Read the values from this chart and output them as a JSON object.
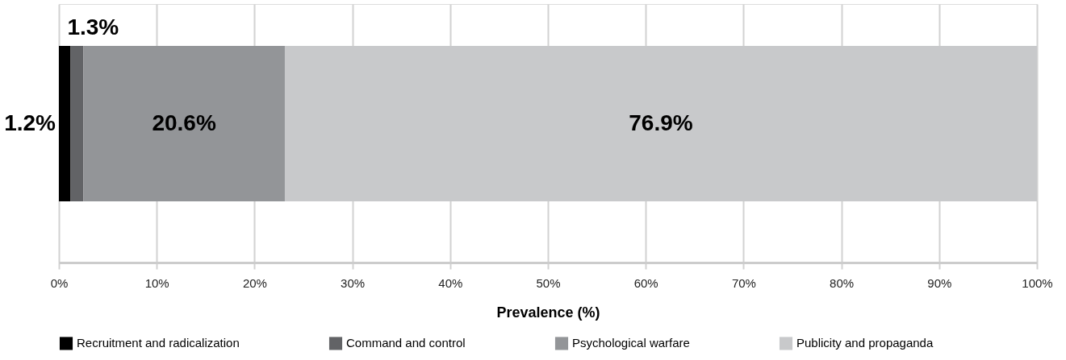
{
  "chart_data": {
    "type": "bar",
    "orientation": "horizontal",
    "stacked": true,
    "categories": [
      null
    ],
    "series": [
      {
        "name": "Recruitment and radicalization",
        "color": "#000000",
        "values": [
          1.2
        ],
        "value_labels": [
          "1.2%"
        ]
      },
      {
        "name": "Command and control",
        "color": "#626366",
        "values": [
          1.3
        ],
        "value_labels": [
          "1.3%"
        ]
      },
      {
        "name": "Psychological warfare",
        "color": "#939598",
        "values": [
          20.6
        ],
        "value_labels": [
          "20.6%"
        ]
      },
      {
        "name": "Publicity and propaganda",
        "color": "#c8c9cb",
        "values": [
          76.9
        ],
        "value_labels": [
          "76.9%"
        ]
      }
    ],
    "xlabel": "Prevalence (%)",
    "xlim": [
      0,
      100
    ],
    "xticks": [
      {
        "value": 0,
        "label": "0%"
      },
      {
        "value": 10,
        "label": "10%"
      },
      {
        "value": 20,
        "label": "20%"
      },
      {
        "value": 30,
        "label": "30%"
      },
      {
        "value": 40,
        "label": "40%"
      },
      {
        "value": 50,
        "label": "50%"
      },
      {
        "value": 60,
        "label": "60%"
      },
      {
        "value": 70,
        "label": "70%"
      },
      {
        "value": 80,
        "label": "80%"
      },
      {
        "value": 90,
        "label": "90%"
      },
      {
        "value": 100,
        "label": "100%"
      }
    ],
    "grid": "x",
    "legend": "bottom"
  }
}
